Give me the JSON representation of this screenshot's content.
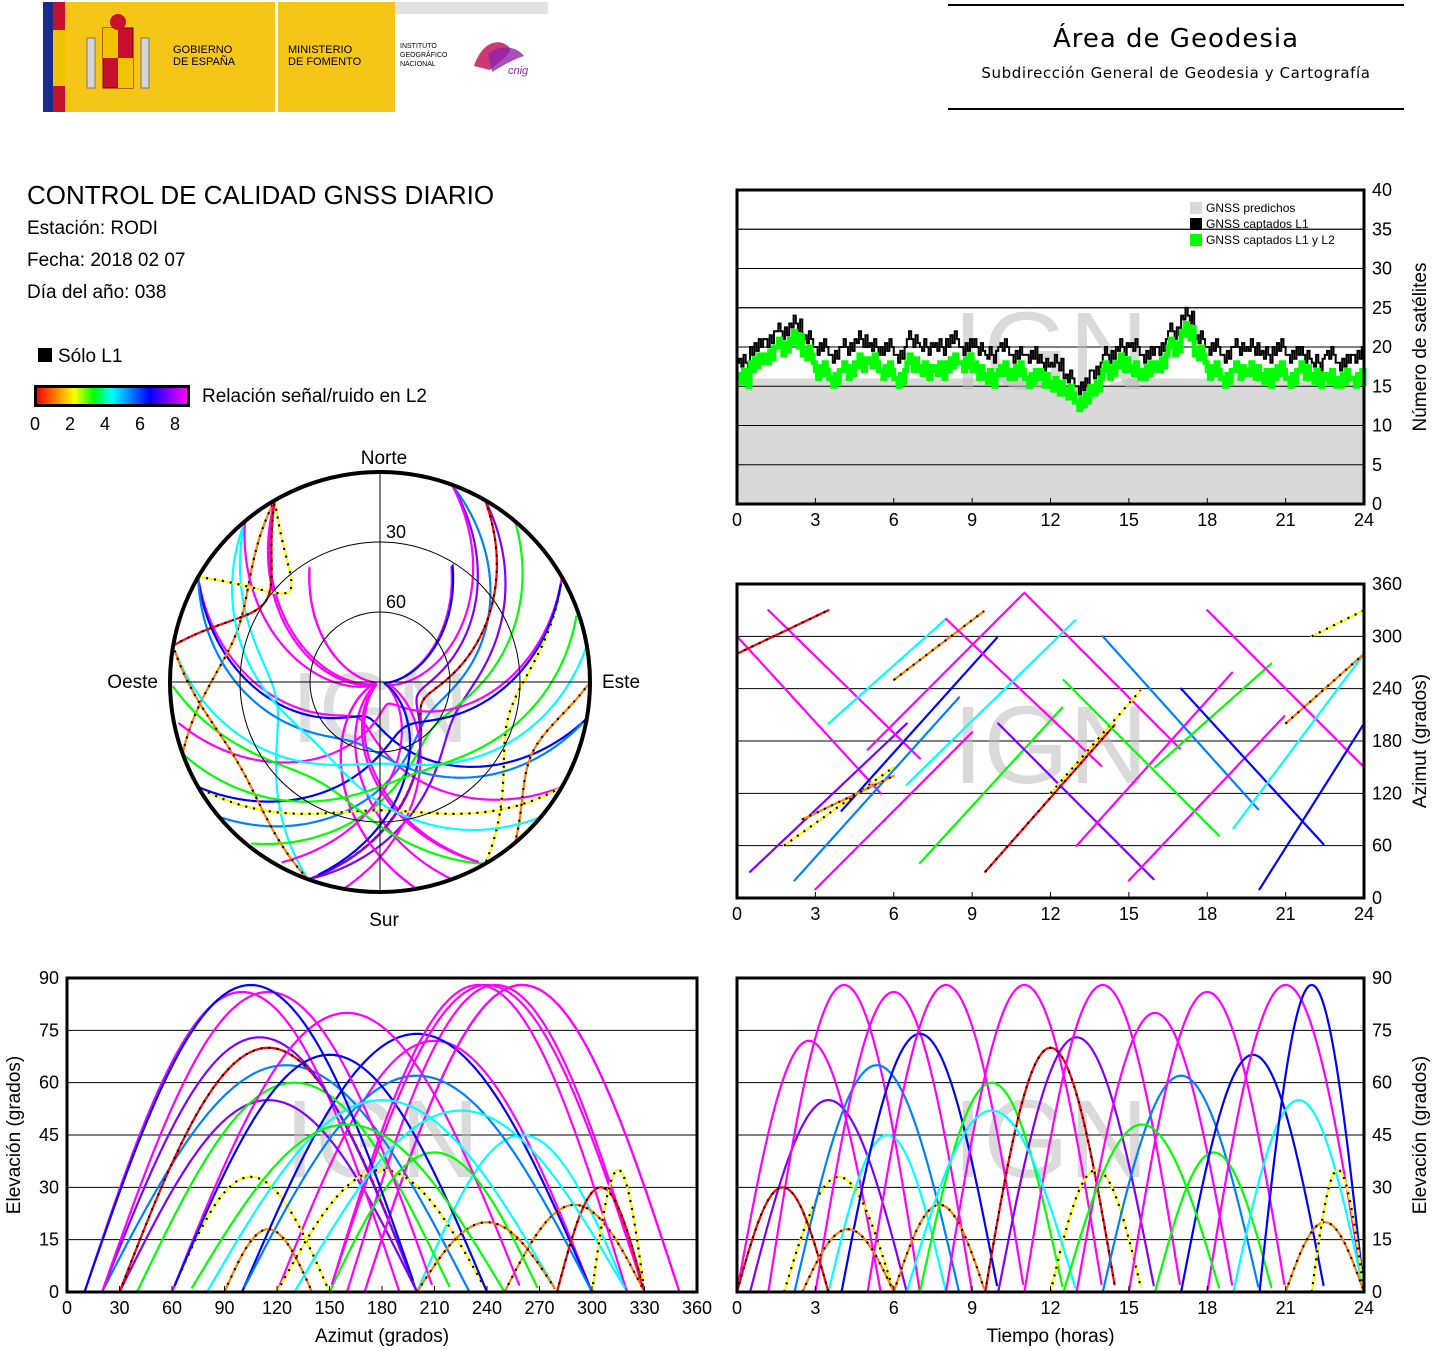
{
  "header": {
    "gov_line1": "GOBIERNO",
    "gov_line2": "DE ESPAÑA",
    "ministry_line1": "MINISTERIO",
    "ministry_line2": "DE FOMENTO",
    "ign_line1": "INSTITUTO",
    "ign_line2": "GEOGRÁFICO",
    "ign_line3": "NACIONAL",
    "ign_logo_word": "cnig",
    "area_title": "Área de Geodesia",
    "area_subtitle": "Subdirección General de Geodesia y Cartografía"
  },
  "report": {
    "title": "CONTROL DE CALIDAD GNSS DIARIO",
    "station": "Estación: RODI",
    "date": "Fecha: 2018 02 07",
    "doy": "Día del año: 038"
  },
  "legend": {
    "only_l1": "Sólo L1",
    "snr_label": "Relación señal/ruido en L2",
    "snr_ticks": [
      "0",
      "2",
      "4",
      "6",
      "8"
    ],
    "snr_colors": [
      "#ff0000",
      "#ff8000",
      "#ffff00",
      "#00ff00",
      "#00ffff",
      "#0080ff",
      "#0000ff",
      "#8000ff",
      "#ff00ff"
    ]
  },
  "watermark": "IGN",
  "skyplot": {
    "north": "Norte",
    "south": "Sur",
    "east": "Este",
    "west": "Oeste",
    "ring_labels": [
      "30",
      "60"
    ]
  },
  "colors": {
    "predicted": "#d9d9d9",
    "l1": "#000000",
    "l1l2": "#00ff00",
    "grid": "#000000"
  },
  "chart_data": [
    {
      "type": "area",
      "id": "satellites",
      "ylabel": "Número de satélites",
      "xlim": [
        0,
        24
      ],
      "ylim": [
        0,
        40
      ],
      "xticks": [
        "0",
        "3",
        "6",
        "9",
        "12",
        "15",
        "18",
        "21",
        "24"
      ],
      "yticks": [
        "0",
        "5",
        "10",
        "15",
        "20",
        "25",
        "30",
        "35",
        "40"
      ],
      "legend_position": "top-right",
      "series": [
        {
          "name": "GNSS predichos",
          "color": "#d9d9d9",
          "x": [
            0,
            1,
            2,
            3,
            4,
            5,
            6,
            7,
            8,
            9,
            10,
            11,
            12,
            13,
            14,
            15,
            16,
            17,
            18,
            19,
            20,
            21,
            22,
            23,
            24
          ],
          "values": [
            16,
            16,
            16,
            16,
            16,
            16,
            16,
            16,
            16,
            16,
            16,
            16,
            15,
            15,
            15,
            16,
            16,
            16,
            16,
            16,
            16,
            16,
            16,
            16,
            16
          ]
        },
        {
          "name": "GNSS captados L1",
          "color": "#000000",
          "x": [
            0,
            0.5,
            1,
            1.5,
            2,
            2.5,
            3,
            3.5,
            4,
            4.5,
            5,
            5.5,
            6,
            6.5,
            7,
            7.5,
            8,
            8.5,
            9,
            9.5,
            10,
            10.5,
            11,
            11.5,
            12,
            12.5,
            13,
            13.5,
            14,
            14.5,
            15,
            15.5,
            16,
            16.5,
            17,
            17.5,
            18,
            18.5,
            19,
            19.5,
            20,
            20.5,
            21,
            21.5,
            22,
            22.5,
            23,
            23.5,
            24
          ],
          "values": [
            18,
            20,
            21,
            22,
            23,
            21,
            20,
            19,
            20,
            21,
            20,
            20,
            19,
            21,
            20,
            20,
            21,
            20,
            20,
            19,
            20,
            19,
            19,
            18,
            18,
            16,
            15,
            17,
            19,
            20,
            20,
            19,
            20,
            22,
            24,
            21,
            20,
            19,
            20,
            20,
            19,
            20,
            19,
            19,
            18,
            19,
            18,
            19,
            17
          ]
        },
        {
          "name": "GNSS captados L1 y L2",
          "color": "#00ff00",
          "x": [
            0,
            0.5,
            1,
            1.5,
            2,
            2.5,
            3,
            3.5,
            4,
            4.5,
            5,
            5.5,
            6,
            6.5,
            7,
            7.5,
            8,
            8.5,
            9,
            9.5,
            10,
            10.5,
            11,
            11.5,
            12,
            12.5,
            13,
            13.5,
            14,
            14.5,
            15,
            15.5,
            16,
            16.5,
            17,
            17.5,
            18,
            18.5,
            19,
            19.5,
            20,
            20.5,
            21,
            21.5,
            22,
            22.5,
            23,
            23.5,
            24
          ],
          "values": [
            16,
            18,
            19,
            20,
            21,
            19,
            17,
            16,
            17,
            18,
            18,
            17,
            16,
            18,
            17,
            17,
            18,
            18,
            17,
            16,
            17,
            17,
            16,
            16,
            15,
            14,
            13,
            15,
            17,
            18,
            17,
            17,
            18,
            20,
            22,
            19,
            17,
            16,
            17,
            17,
            16,
            17,
            16,
            17,
            16,
            16,
            16,
            16,
            15
          ]
        }
      ]
    },
    {
      "type": "scatter",
      "id": "azimuth_time",
      "ylabel": "Azimut (grados)",
      "xlim": [
        0,
        24
      ],
      "ylim": [
        0,
        360
      ],
      "xticks": [
        "0",
        "3",
        "6",
        "9",
        "12",
        "15",
        "18",
        "21",
        "24"
      ],
      "yticks": [
        "0",
        "60",
        "120",
        "180",
        "240",
        "300",
        "360"
      ]
    },
    {
      "type": "scatter",
      "id": "elevation_azimuth",
      "xlabel": "Azimut (grados)",
      "ylabel": "Elevación (grados)",
      "xlim": [
        0,
        360
      ],
      "ylim": [
        0,
        90
      ],
      "xticks": [
        "0",
        "30",
        "60",
        "90",
        "120",
        "150",
        "180",
        "210",
        "240",
        "270",
        "300",
        "330",
        "360"
      ],
      "yticks": [
        "0",
        "15",
        "30",
        "45",
        "60",
        "75",
        "90"
      ]
    },
    {
      "type": "line",
      "id": "elevation_time",
      "xlabel": "Tiempo (horas)",
      "ylabel": "Elevación (grados)",
      "xlim": [
        0,
        24
      ],
      "ylim": [
        0,
        90
      ],
      "xticks": [
        "0",
        "3",
        "6",
        "9",
        "12",
        "15",
        "18",
        "21",
        "24"
      ],
      "yticks": [
        "0",
        "15",
        "30",
        "45",
        "60",
        "75",
        "90"
      ]
    }
  ],
  "satellite_tracks": [
    {
      "rise": 0.0,
      "set": 5.5,
      "peak": 72,
      "az0": 300,
      "az1": 120,
      "snr": 8
    },
    {
      "rise": 0.5,
      "set": 6.5,
      "peak": 55,
      "az0": 30,
      "az1": 200,
      "snr": 7
    },
    {
      "rise": 1.2,
      "set": 7.0,
      "peak": 88,
      "az0": 330,
      "az1": 160,
      "snr": 8
    },
    {
      "rise": 1.8,
      "set": 6.0,
      "peak": 33,
      "az0": 60,
      "az1": 150,
      "snr": 2
    },
    {
      "rise": 2.2,
      "set": 8.5,
      "peak": 65,
      "az0": 20,
      "az1": 230,
      "snr": 5
    },
    {
      "rise": 3.0,
      "set": 9.0,
      "peak": 86,
      "az0": 10,
      "az1": 190,
      "snr": 8
    },
    {
      "rise": 3.5,
      "set": 8.0,
      "peak": 45,
      "az0": 200,
      "az1": 320,
      "snr": 4
    },
    {
      "rise": 4.0,
      "set": 10.0,
      "peak": 74,
      "az0": 100,
      "az1": 300,
      "snr": 6
    },
    {
      "rise": 5.0,
      "set": 11.0,
      "peak": 88,
      "az0": 170,
      "az1": 350,
      "snr": 8
    },
    {
      "rise": 6.0,
      "set": 9.5,
      "peak": 25,
      "az0": 250,
      "az1": 330,
      "snr": 1
    },
    {
      "rise": 7.0,
      "set": 12.5,
      "peak": 60,
      "az0": 40,
      "az1": 220,
      "snr": 3
    },
    {
      "rise": 8.0,
      "set": 14.0,
      "peak": 88,
      "az0": 320,
      "az1": 150,
      "snr": 8
    },
    {
      "rise": 9.5,
      "set": 14.5,
      "peak": 70,
      "az0": 30,
      "az1": 200,
      "snr": 0
    },
    {
      "rise": 10.0,
      "set": 16.0,
      "peak": 73,
      "az0": 200,
      "az1": 20,
      "snr": 7
    },
    {
      "rise": 11.0,
      "set": 17.0,
      "peak": 88,
      "az0": 350,
      "az1": 170,
      "snr": 8
    },
    {
      "rise": 12.0,
      "set": 15.5,
      "peak": 35,
      "az0": 120,
      "az1": 240,
      "snr": 2
    },
    {
      "rise": 13.0,
      "set": 19.0,
      "peak": 80,
      "az0": 60,
      "az1": 260,
      "snr": 8
    },
    {
      "rise": 14.0,
      "set": 20.0,
      "peak": 62,
      "az0": 300,
      "az1": 100,
      "snr": 5
    },
    {
      "rise": 15.0,
      "set": 21.0,
      "peak": 86,
      "az0": 20,
      "az1": 210,
      "snr": 8
    },
    {
      "rise": 16.0,
      "set": 20.5,
      "peak": 40,
      "az0": 150,
      "az1": 270,
      "snr": 3
    },
    {
      "rise": 17.0,
      "set": 22.5,
      "peak": 68,
      "az0": 240,
      "az1": 60,
      "snr": 6
    },
    {
      "rise": 18.0,
      "set": 24.0,
      "peak": 88,
      "az0": 330,
      "az1": 150,
      "snr": 8
    },
    {
      "rise": 19.0,
      "set": 24.0,
      "peak": 55,
      "az0": 80,
      "az1": 280,
      "snr": 4
    },
    {
      "rise": 20.0,
      "set": 24.0,
      "peak": 88,
      "az0": 10,
      "az1": 200,
      "snr": 6
    },
    {
      "rise": 21.0,
      "set": 24.0,
      "peak": 20,
      "az0": 200,
      "az1": 280,
      "snr": 1
    },
    {
      "rise": 0.0,
      "set": 3.5,
      "peak": 30,
      "az0": 280,
      "az1": 330,
      "snr": 0
    },
    {
      "rise": 2.5,
      "set": 6.0,
      "peak": 18,
      "az0": 90,
      "az1": 140,
      "snr": 1
    },
    {
      "rise": 6.5,
      "set": 13.0,
      "peak": 52,
      "az0": 130,
      "az1": 320,
      "snr": 4
    },
    {
      "rise": 12.5,
      "set": 18.5,
      "peak": 48,
      "az0": 250,
      "az1": 70,
      "snr": 3
    },
    {
      "rise": 22.0,
      "set": 24.0,
      "peak": 35,
      "az0": 300,
      "az1": 330,
      "snr": 2
    }
  ]
}
